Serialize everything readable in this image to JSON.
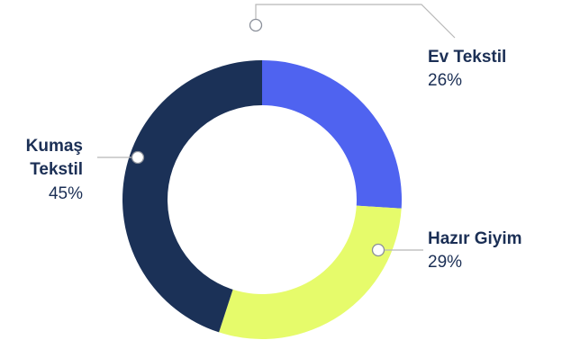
{
  "chart_data": {
    "type": "pie",
    "title": "",
    "categories": [
      "Ev Tekstil",
      "Hazır Giyim",
      "Kumaş Tekstil"
    ],
    "values": [
      26,
      29,
      45
    ],
    "value_labels": [
      "26%",
      "29%",
      "45%"
    ],
    "label_lines": [
      [
        "Ev Tekstil"
      ],
      [
        "Hazır Giyim"
      ],
      [
        "Kumaş",
        "Tekstil"
      ]
    ],
    "colors": [
      "#4f63f0",
      "#e6fb6b",
      "#1b3157"
    ],
    "label_color": "#1b2f55",
    "leader_color": "#b8b8b8",
    "donut": true,
    "legend": "none"
  }
}
